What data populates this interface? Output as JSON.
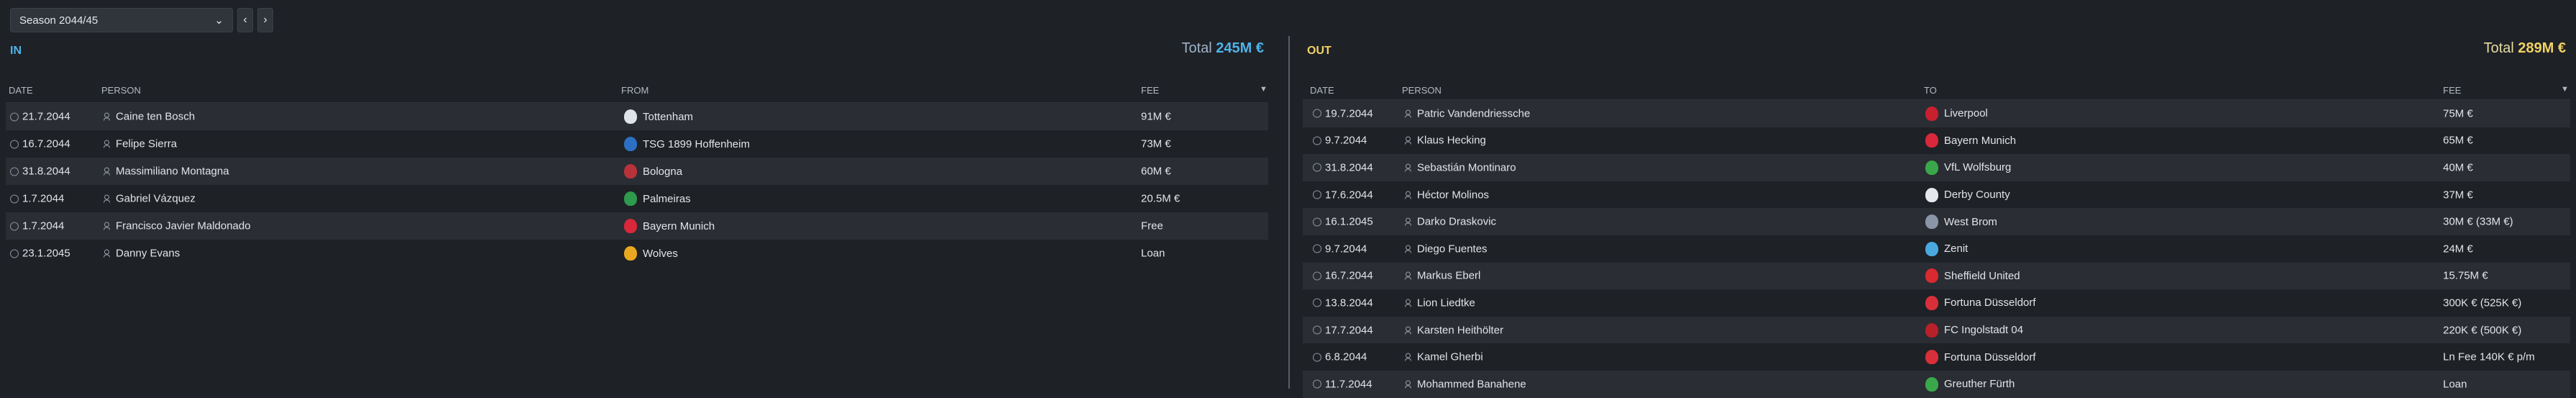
{
  "season": {
    "label": "Season 2044/45"
  },
  "in": {
    "label": "IN",
    "total_label": "Total",
    "total_value": "245M €",
    "columns": {
      "date": "DATE",
      "person": "PERSON",
      "club": "FROM",
      "fee": "FEE"
    },
    "rows": [
      {
        "date": "21.7.2044",
        "person": "Caine ten Bosch",
        "club": "Tottenham",
        "fee": "91M €",
        "crest_color": "#dfe3ea"
      },
      {
        "date": "16.7.2044",
        "person": "Felipe Sierra",
        "club": "TSG 1899 Hoffenheim",
        "fee": "73M €",
        "crest_color": "#2d6fc2"
      },
      {
        "date": "31.8.2044",
        "person": "Massimiliano Montagna",
        "club": "Bologna",
        "fee": "60M €",
        "crest_color": "#b8323a"
      },
      {
        "date": "1.7.2044",
        "person": "Gabriel Vázquez",
        "club": "Palmeiras",
        "fee": "20.5M €",
        "crest_color": "#2e9a4c"
      },
      {
        "date": "1.7.2044",
        "person": "Francisco Javier Maldonado",
        "club": "Bayern Munich",
        "fee": "Free",
        "crest_color": "#d8283a"
      },
      {
        "date": "23.1.2045",
        "person": "Danny Evans",
        "club": "Wolves",
        "fee": "Loan",
        "crest_color": "#e9a820"
      }
    ]
  },
  "out": {
    "label": "OUT",
    "total_label": "Total",
    "total_value": "289M €",
    "columns": {
      "date": "DATE",
      "person": "PERSON",
      "club": "TO",
      "fee": "FEE"
    },
    "rows": [
      {
        "date": "19.7.2044",
        "person": "Patric Vandendriessche",
        "club": "Liverpool",
        "fee": "75M €",
        "crest_color": "#c8202f"
      },
      {
        "date": "9.7.2044",
        "person": "Klaus Hecking",
        "club": "Bayern Munich",
        "fee": "65M €",
        "crest_color": "#d8283a"
      },
      {
        "date": "31.8.2044",
        "person": "Sebastián Montinaro",
        "club": "VfL Wolfsburg",
        "fee": "40M €",
        "crest_color": "#3aa84a"
      },
      {
        "date": "17.6.2044",
        "person": "Héctor Molinos",
        "club": "Derby County",
        "fee": "37M €",
        "crest_color": "#e6e8ec"
      },
      {
        "date": "16.1.2045",
        "person": "Darko Draskovic",
        "club": "West Brom",
        "fee": "30M € (33M €)",
        "crest_color": "#8a96a8"
      },
      {
        "date": "9.7.2044",
        "person": "Diego Fuentes",
        "club": "Zenit",
        "fee": "24M €",
        "crest_color": "#4aa8e0"
      },
      {
        "date": "16.7.2044",
        "person": "Markus Eberl",
        "club": "Sheffield United",
        "fee": "15.75M €",
        "crest_color": "#d82a30"
      },
      {
        "date": "13.8.2044",
        "person": "Lion Liedtke",
        "club": "Fortuna Düsseldorf",
        "fee": "300K € (525K €)",
        "crest_color": "#d8303a"
      },
      {
        "date": "17.7.2044",
        "person": "Karsten Heithölter",
        "club": "FC Ingolstadt 04",
        "fee": "220K € (500K €)",
        "crest_color": "#b8202a"
      },
      {
        "date": "6.8.2044",
        "person": "Kamel Gherbi",
        "club": "Fortuna Düsseldorf",
        "fee": "Ln Fee 140K € p/m",
        "crest_color": "#d8303a"
      },
      {
        "date": "11.7.2044",
        "person": "Mohammed Banahene",
        "club": "Greuther Fürth",
        "fee": "Loan",
        "crest_color": "#3aa84a"
      }
    ]
  }
}
